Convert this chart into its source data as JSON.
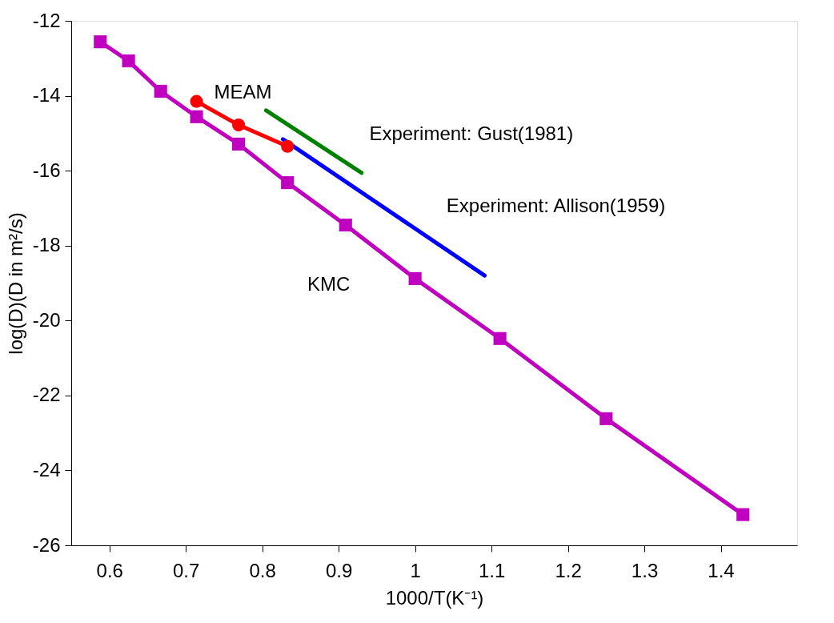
{
  "chart_data": {
    "type": "line",
    "xlabel": "1000/T(K⁻¹)",
    "ylabel": "log(D)(D in m²/s)",
    "xlim": [
      0.55,
      1.5
    ],
    "xticks": [
      0.6,
      0.7,
      0.8,
      0.9,
      1,
      1.1,
      1.2,
      1.3,
      1.4
    ],
    "ylim": [
      -26,
      -12
    ],
    "yticks": [
      -26,
      -24,
      -22,
      -20,
      -18,
      -16,
      -14,
      -12
    ],
    "grid": false,
    "legend": false,
    "line_style": "solid",
    "series": [
      {
        "name": "KMC",
        "color": "#bf00bf",
        "marker": "square",
        "x": [
          0.588,
          0.625,
          0.667,
          0.714,
          0.769,
          0.833,
          0.909,
          1.0,
          1.111,
          1.25,
          1.429
        ],
        "values": [
          -12.56,
          -13.07,
          -13.88,
          -14.56,
          -15.29,
          -16.32,
          -17.45,
          -18.88,
          -20.48,
          -22.62,
          -25.18
        ]
      },
      {
        "name": "Experiment: Gust(1981)",
        "color": "#008000",
        "marker": "none",
        "x": [
          0.805,
          0.93
        ],
        "values": [
          -14.39,
          -16.06
        ]
      },
      {
        "name": "Experiment: Allison(1959)",
        "color": "#0000ff",
        "marker": "none",
        "x": [
          0.827,
          1.091
        ],
        "values": [
          -15.16,
          -18.8
        ]
      },
      {
        "name": "MEAM",
        "color": "#ff0000",
        "marker": "circle",
        "x": [
          0.714,
          0.769,
          0.833
        ],
        "values": [
          -14.15,
          -14.78,
          -15.35
        ]
      }
    ]
  }
}
